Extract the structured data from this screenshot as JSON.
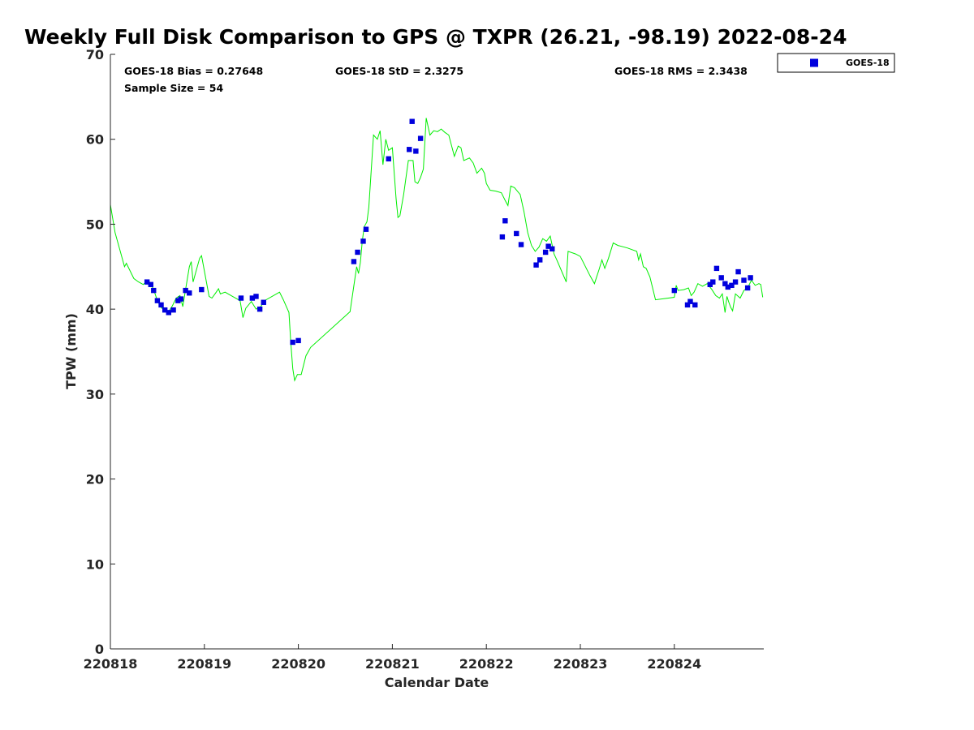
{
  "chart_data": {
    "type": "scatter",
    "title": "Weekly Full Disk Comparison to GPS @ TXPR (26.21, -98.19) 2022-08-24",
    "xlabel": "Calendar Date",
    "ylabel": "TPW (mm)",
    "xlim": [
      0,
      6.95
    ],
    "ylim": [
      0,
      70
    ],
    "x_ticks": [
      0,
      1,
      2,
      3,
      4,
      5,
      6
    ],
    "x_tick_labels": [
      "220818",
      "220819",
      "220820",
      "220821",
      "220822",
      "220823",
      "220824"
    ],
    "y_ticks": [
      0,
      10,
      20,
      30,
      40,
      50,
      60,
      70
    ],
    "y_tick_labels": [
      "0",
      "10",
      "20",
      "30",
      "40",
      "50",
      "60",
      "70"
    ],
    "x_unit_note": "x measured in days since 220818",
    "grid": false,
    "legend_placement": "outside-top-right",
    "stats": {
      "bias": "GOES-18 Bias = 0.27648",
      "std": "GOES-18 StD = 2.3275",
      "rms": "GOES-18 RMS = 2.3438",
      "sample_size": "Sample Size = 54"
    },
    "series": [
      {
        "name": "GOES-18",
        "style": "square-markers",
        "color": "#0000dd",
        "points": [
          [
            0.39,
            43.2
          ],
          [
            0.43,
            42.9
          ],
          [
            0.46,
            42.2
          ],
          [
            0.5,
            41.0
          ],
          [
            0.54,
            40.5
          ],
          [
            0.58,
            39.9
          ],
          [
            0.62,
            39.6
          ],
          [
            0.67,
            39.9
          ],
          [
            0.72,
            41.0
          ],
          [
            0.75,
            41.2
          ],
          [
            0.8,
            42.2
          ],
          [
            0.84,
            41.9
          ],
          [
            0.97,
            42.3
          ],
          [
            1.39,
            41.3
          ],
          [
            1.51,
            41.3
          ],
          [
            1.55,
            41.5
          ],
          [
            1.59,
            40.0
          ],
          [
            1.63,
            40.8
          ],
          [
            1.94,
            36.1
          ],
          [
            2.0,
            36.3
          ],
          [
            2.59,
            45.6
          ],
          [
            2.63,
            46.7
          ],
          [
            2.69,
            48.0
          ],
          [
            2.72,
            49.4
          ],
          [
            2.96,
            57.7
          ],
          [
            3.18,
            58.8
          ],
          [
            3.21,
            62.1
          ],
          [
            3.25,
            58.6
          ],
          [
            3.3,
            60.1
          ],
          [
            4.17,
            48.5
          ],
          [
            4.2,
            50.4
          ],
          [
            4.32,
            48.9
          ],
          [
            4.37,
            47.6
          ],
          [
            4.53,
            45.2
          ],
          [
            4.57,
            45.8
          ],
          [
            4.63,
            46.7
          ],
          [
            4.66,
            47.4
          ],
          [
            4.7,
            47.1
          ],
          [
            6.0,
            42.2
          ],
          [
            6.14,
            40.5
          ],
          [
            6.17,
            40.9
          ],
          [
            6.22,
            40.5
          ],
          [
            6.38,
            42.9
          ],
          [
            6.41,
            43.2
          ],
          [
            6.45,
            44.8
          ],
          [
            6.5,
            43.7
          ],
          [
            6.54,
            43.0
          ],
          [
            6.57,
            42.6
          ],
          [
            6.61,
            42.8
          ],
          [
            6.65,
            43.2
          ],
          [
            6.68,
            44.4
          ],
          [
            6.74,
            43.4
          ],
          [
            6.78,
            42.5
          ],
          [
            6.81,
            43.7
          ]
        ]
      },
      {
        "name": "GPS",
        "style": "line",
        "color": "#00ee00",
        "points": [
          [
            0.0,
            52.3
          ],
          [
            0.05,
            49.0
          ],
          [
            0.1,
            47.0
          ],
          [
            0.15,
            45.0
          ],
          [
            0.17,
            45.4
          ],
          [
            0.21,
            44.5
          ],
          [
            0.25,
            43.6
          ],
          [
            0.3,
            43.2
          ],
          [
            0.35,
            42.9
          ],
          [
            0.4,
            43.4
          ],
          [
            0.43,
            43.0
          ],
          [
            0.46,
            42.3
          ],
          [
            0.5,
            41.0
          ],
          [
            0.54,
            40.2
          ],
          [
            0.58,
            39.8
          ],
          [
            0.62,
            39.7
          ],
          [
            0.66,
            40.4
          ],
          [
            0.7,
            41.3
          ],
          [
            0.74,
            41.6
          ],
          [
            0.77,
            40.3
          ],
          [
            0.8,
            42.3
          ],
          [
            0.84,
            45.0
          ],
          [
            0.86,
            45.6
          ],
          [
            0.88,
            43.2
          ],
          [
            0.92,
            44.8
          ],
          [
            0.95,
            46.0
          ],
          [
            0.97,
            46.3
          ],
          [
            1.0,
            44.5
          ],
          [
            1.05,
            41.5
          ],
          [
            1.08,
            41.3
          ],
          [
            1.12,
            41.9
          ],
          [
            1.15,
            42.4
          ],
          [
            1.17,
            41.8
          ],
          [
            1.22,
            42.0
          ],
          [
            1.3,
            41.5
          ],
          [
            1.38,
            41.0
          ],
          [
            1.41,
            39.0
          ],
          [
            1.44,
            40.1
          ],
          [
            1.5,
            40.9
          ],
          [
            1.55,
            40.0
          ],
          [
            1.6,
            40.3
          ],
          [
            1.64,
            41.0
          ],
          [
            1.8,
            42.0
          ],
          [
            1.84,
            41.1
          ],
          [
            1.9,
            39.6
          ],
          [
            1.92,
            36.0
          ],
          [
            1.94,
            33.0
          ],
          [
            1.96,
            31.6
          ],
          [
            1.99,
            32.3
          ],
          [
            2.03,
            32.3
          ],
          [
            2.08,
            34.5
          ],
          [
            2.13,
            35.5
          ],
          [
            2.55,
            39.7
          ],
          [
            2.58,
            42.0
          ],
          [
            2.6,
            43.5
          ],
          [
            2.62,
            45.0
          ],
          [
            2.64,
            44.2
          ],
          [
            2.66,
            45.5
          ],
          [
            2.68,
            48.0
          ],
          [
            2.7,
            49.7
          ],
          [
            2.73,
            50.3
          ],
          [
            2.75,
            52.0
          ],
          [
            2.8,
            60.5
          ],
          [
            2.84,
            60.0
          ],
          [
            2.87,
            61.0
          ],
          [
            2.9,
            57.0
          ],
          [
            2.93,
            60.0
          ],
          [
            2.96,
            58.7
          ],
          [
            3.0,
            59.0
          ],
          [
            3.04,
            53.0
          ],
          [
            3.06,
            50.8
          ],
          [
            3.08,
            51.0
          ],
          [
            3.12,
            53.5
          ],
          [
            3.17,
            57.5
          ],
          [
            3.22,
            57.5
          ],
          [
            3.24,
            55.0
          ],
          [
            3.27,
            54.8
          ],
          [
            3.3,
            55.5
          ],
          [
            3.33,
            56.5
          ],
          [
            3.36,
            62.5
          ],
          [
            3.4,
            60.5
          ],
          [
            3.44,
            61.0
          ],
          [
            3.48,
            60.9
          ],
          [
            3.52,
            61.2
          ],
          [
            3.56,
            60.8
          ],
          [
            3.6,
            60.5
          ],
          [
            3.66,
            58.0
          ],
          [
            3.7,
            59.2
          ],
          [
            3.73,
            59.0
          ],
          [
            3.76,
            57.5
          ],
          [
            3.82,
            57.8
          ],
          [
            3.86,
            57.2
          ],
          [
            3.9,
            56.0
          ],
          [
            3.95,
            56.6
          ],
          [
            3.98,
            56.0
          ],
          [
            4.0,
            54.8
          ],
          [
            4.04,
            54.0
          ],
          [
            4.1,
            53.9
          ],
          [
            4.16,
            53.7
          ],
          [
            4.2,
            52.8
          ],
          [
            4.23,
            52.2
          ],
          [
            4.26,
            54.5
          ],
          [
            4.3,
            54.3
          ],
          [
            4.36,
            53.5
          ],
          [
            4.4,
            51.5
          ],
          [
            4.44,
            49.0
          ],
          [
            4.48,
            47.5
          ],
          [
            4.52,
            46.8
          ],
          [
            4.56,
            47.3
          ],
          [
            4.6,
            48.3
          ],
          [
            4.64,
            48.0
          ],
          [
            4.68,
            48.6
          ],
          [
            4.72,
            46.5
          ],
          [
            4.75,
            45.8
          ],
          [
            4.8,
            44.5
          ],
          [
            4.85,
            43.2
          ],
          [
            4.87,
            46.8
          ],
          [
            4.95,
            46.5
          ],
          [
            5.0,
            46.2
          ],
          [
            5.1,
            44.0
          ],
          [
            5.15,
            43.0
          ],
          [
            5.2,
            44.7
          ],
          [
            5.23,
            45.8
          ],
          [
            5.26,
            44.8
          ],
          [
            5.3,
            46.0
          ],
          [
            5.35,
            47.8
          ],
          [
            5.4,
            47.5
          ],
          [
            5.5,
            47.2
          ],
          [
            5.6,
            46.8
          ],
          [
            5.62,
            45.8
          ],
          [
            5.64,
            46.5
          ],
          [
            5.67,
            45.0
          ],
          [
            5.7,
            44.8
          ],
          [
            5.74,
            43.8
          ],
          [
            5.76,
            42.9
          ],
          [
            5.8,
            41.1
          ],
          [
            6.0,
            41.4
          ],
          [
            6.02,
            42.8
          ],
          [
            6.04,
            42.2
          ],
          [
            6.1,
            42.3
          ],
          [
            6.15,
            42.5
          ],
          [
            6.18,
            41.6
          ],
          [
            6.21,
            42.0
          ],
          [
            6.25,
            43.0
          ],
          [
            6.3,
            42.7
          ],
          [
            6.35,
            43.0
          ],
          [
            6.4,
            42.3
          ],
          [
            6.44,
            41.6
          ],
          [
            6.48,
            41.3
          ],
          [
            6.51,
            41.8
          ],
          [
            6.54,
            39.6
          ],
          [
            6.56,
            41.5
          ],
          [
            6.58,
            40.8
          ],
          [
            6.6,
            40.2
          ],
          [
            6.62,
            39.8
          ],
          [
            6.65,
            41.8
          ],
          [
            6.7,
            41.3
          ],
          [
            6.74,
            42.2
          ],
          [
            6.78,
            42.5
          ],
          [
            6.82,
            43.4
          ],
          [
            6.86,
            42.8
          ],
          [
            6.9,
            43.0
          ],
          [
            6.92,
            42.9
          ],
          [
            6.94,
            41.4
          ]
        ]
      }
    ]
  }
}
